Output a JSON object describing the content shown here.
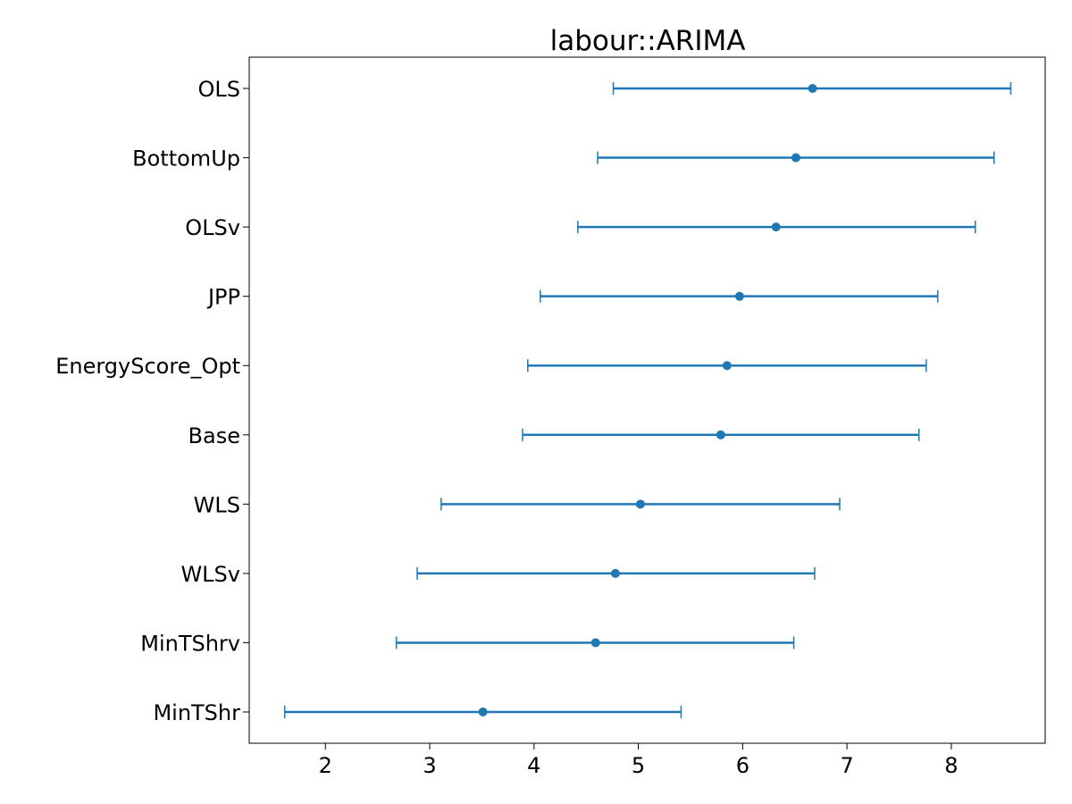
{
  "chart_data": {
    "type": "errorbar",
    "title": "labour::ARIMA",
    "xlabel": "",
    "ylabel": "",
    "xlim": [
      1.27,
      8.9
    ],
    "xticks": [
      2,
      3,
      4,
      5,
      6,
      7,
      8
    ],
    "grid": false,
    "color": "#1f77b4",
    "categories": [
      "OLS",
      "BottomUp",
      "OLSv",
      "JPP",
      "EnergyScore_Opt",
      "Base",
      "WLS",
      "WLSv",
      "MinTShrv",
      "MinTShr"
    ],
    "values": [
      6.67,
      6.51,
      6.32,
      5.97,
      5.85,
      5.79,
      5.02,
      4.78,
      4.59,
      3.51
    ],
    "lower": [
      4.76,
      4.61,
      4.42,
      4.06,
      3.94,
      3.89,
      3.11,
      2.88,
      2.68,
      1.61
    ],
    "upper": [
      8.57,
      8.41,
      8.23,
      7.87,
      7.76,
      7.69,
      6.93,
      6.69,
      6.49,
      5.41
    ]
  }
}
